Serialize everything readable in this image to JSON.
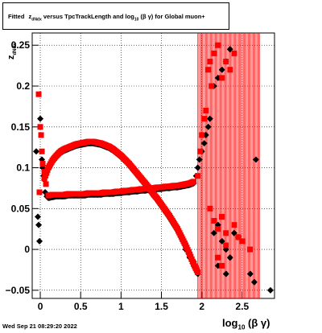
{
  "title": {
    "lead": "Fitted",
    "z": "z",
    "z_sub": "dNdx",
    "middle": "versus TpcTrackLength and log",
    "log_sub": "10",
    "tail": "(β γ) for Global muon+"
  },
  "date_stamp": "Wed Sep 21 08:29:20 2022",
  "x_axis_label": {
    "main": "log",
    "sub": "10",
    "tail": "(β γ)"
  },
  "y_axis_label": {
    "main": "z",
    "sub": "dNdx"
  },
  "colors": {
    "series_black": "#000000",
    "series_red": "#ff0000",
    "grid": "#000000"
  },
  "chart_data": {
    "type": "scatter",
    "xlim": [
      -0.1,
      2.9
    ],
    "ylim": [
      -0.06,
      0.265
    ],
    "x_ticks": [
      0,
      0.5,
      1,
      1.5,
      2,
      2.5
    ],
    "x_tick_labels": [
      "0",
      "0.5",
      "1",
      "1.5",
      "2",
      "2.5"
    ],
    "y_ticks": [
      -0.05,
      0,
      0.05,
      0.1,
      0.15,
      0.2,
      0.25
    ],
    "y_tick_labels": [
      "−0.05",
      "0",
      "0.05",
      "0.1",
      "0.15",
      "0.2",
      "0.25"
    ],
    "grid": true,
    "series": [
      {
        "marker": "diamond",
        "color": "#000000",
        "upper_band": [
          [
            0.05,
            0.085
          ],
          [
            0.1,
            0.098
          ],
          [
            0.15,
            0.107
          ],
          [
            0.2,
            0.113
          ],
          [
            0.25,
            0.118
          ],
          [
            0.3,
            0.121
          ],
          [
            0.35,
            0.123
          ],
          [
            0.4,
            0.125
          ],
          [
            0.45,
            0.127
          ],
          [
            0.5,
            0.128
          ],
          [
            0.55,
            0.129
          ],
          [
            0.6,
            0.13
          ],
          [
            0.65,
            0.13
          ],
          [
            0.7,
            0.129
          ],
          [
            0.75,
            0.128
          ],
          [
            0.8,
            0.126
          ],
          [
            0.85,
            0.124
          ],
          [
            0.9,
            0.121
          ],
          [
            0.95,
            0.117
          ],
          [
            1.0,
            0.113
          ],
          [
            1.05,
            0.108
          ],
          [
            1.1,
            0.103
          ],
          [
            1.15,
            0.097
          ],
          [
            1.2,
            0.091
          ],
          [
            1.25,
            0.085
          ],
          [
            1.3,
            0.079
          ],
          [
            1.35,
            0.073
          ],
          [
            1.4,
            0.066
          ],
          [
            1.45,
            0.06
          ],
          [
            1.5,
            0.053
          ],
          [
            1.55,
            0.046
          ],
          [
            1.6,
            0.039
          ],
          [
            1.65,
            0.031
          ],
          [
            1.7,
            0.023
          ],
          [
            1.75,
            0.013
          ],
          [
            1.8,
            0.003
          ],
          [
            1.85,
            -0.008
          ],
          [
            1.9,
            -0.02
          ],
          [
            1.95,
            -0.03
          ]
        ],
        "lower_band": [
          [
            0.1,
            0.063
          ],
          [
            0.15,
            0.064
          ],
          [
            0.2,
            0.065
          ],
          [
            0.25,
            0.065
          ],
          [
            0.3,
            0.065
          ],
          [
            0.35,
            0.066
          ],
          [
            0.4,
            0.066
          ],
          [
            0.45,
            0.066
          ],
          [
            0.5,
            0.066
          ],
          [
            0.55,
            0.066
          ],
          [
            0.6,
            0.067
          ],
          [
            0.65,
            0.067
          ],
          [
            0.7,
            0.067
          ],
          [
            0.75,
            0.067
          ],
          [
            0.8,
            0.068
          ],
          [
            0.85,
            0.068
          ],
          [
            0.9,
            0.068
          ],
          [
            0.95,
            0.069
          ],
          [
            1.0,
            0.069
          ],
          [
            1.05,
            0.07
          ],
          [
            1.1,
            0.07
          ],
          [
            1.15,
            0.071
          ],
          [
            1.2,
            0.071
          ],
          [
            1.25,
            0.072
          ],
          [
            1.3,
            0.072
          ],
          [
            1.35,
            0.073
          ],
          [
            1.4,
            0.073
          ],
          [
            1.45,
            0.074
          ],
          [
            1.5,
            0.074
          ],
          [
            1.55,
            0.075
          ],
          [
            1.6,
            0.075
          ],
          [
            1.65,
            0.076
          ],
          [
            1.7,
            0.076
          ],
          [
            1.75,
            0.077
          ],
          [
            1.8,
            0.078
          ],
          [
            1.85,
            0.079
          ],
          [
            1.9,
            0.081
          ]
        ],
        "scattered": [
          [
            -0.05,
            0.12
          ],
          [
            -0.03,
            0.04
          ],
          [
            -0.02,
            0.03
          ],
          [
            -0.01,
            0.01
          ],
          [
            0.0,
            0.16
          ],
          [
            0.02,
            0.11
          ],
          [
            0.03,
            0.1
          ],
          [
            0.04,
            0.09
          ],
          [
            0.06,
            0.07
          ],
          [
            0.08,
            0.065
          ],
          [
            1.8,
            0.0
          ],
          [
            1.85,
            -0.01
          ],
          [
            1.9,
            -0.015
          ],
          [
            1.93,
            0.09
          ],
          [
            1.95,
            0.1
          ],
          [
            1.97,
            0.11
          ],
          [
            2.0,
            0.12
          ],
          [
            2.03,
            0.13
          ],
          [
            2.05,
            0.14
          ],
          [
            2.08,
            0.15
          ],
          [
            2.1,
            0.16
          ],
          [
            2.15,
            0.2
          ],
          [
            2.2,
            0.21
          ],
          [
            2.25,
            0.22
          ],
          [
            2.3,
            0.23
          ],
          [
            2.35,
            0.245
          ],
          [
            2.15,
            0.02
          ],
          [
            2.2,
            0.03
          ],
          [
            2.25,
            0.01
          ],
          [
            2.3,
            0.0
          ],
          [
            2.35,
            -0.01
          ],
          [
            2.4,
            0.02
          ],
          [
            2.45,
            0.015
          ],
          [
            2.2,
            -0.02
          ],
          [
            2.3,
            -0.03
          ],
          [
            2.6,
            -0.03
          ],
          [
            2.65,
            -0.04
          ],
          [
            2.67,
            0.11
          ],
          [
            2.85,
            -0.05
          ]
        ]
      },
      {
        "marker": "square",
        "color": "#ff0000",
        "upper_band": [
          [
            0.05,
            0.087
          ],
          [
            0.1,
            0.1
          ],
          [
            0.15,
            0.109
          ],
          [
            0.2,
            0.115
          ],
          [
            0.25,
            0.12
          ],
          [
            0.3,
            0.123
          ],
          [
            0.35,
            0.125
          ],
          [
            0.4,
            0.127
          ],
          [
            0.45,
            0.129
          ],
          [
            0.5,
            0.13
          ],
          [
            0.55,
            0.131
          ],
          [
            0.6,
            0.132
          ],
          [
            0.65,
            0.132
          ],
          [
            0.7,
            0.131
          ],
          [
            0.75,
            0.13
          ],
          [
            0.8,
            0.128
          ],
          [
            0.85,
            0.126
          ],
          [
            0.9,
            0.123
          ],
          [
            0.95,
            0.119
          ],
          [
            1.0,
            0.115
          ],
          [
            1.05,
            0.11
          ],
          [
            1.1,
            0.105
          ],
          [
            1.15,
            0.099
          ],
          [
            1.2,
            0.093
          ],
          [
            1.25,
            0.087
          ],
          [
            1.3,
            0.081
          ],
          [
            1.35,
            0.075
          ],
          [
            1.4,
            0.068
          ],
          [
            1.45,
            0.062
          ],
          [
            1.5,
            0.055
          ],
          [
            1.55,
            0.048
          ],
          [
            1.6,
            0.041
          ],
          [
            1.65,
            0.033
          ],
          [
            1.7,
            0.025
          ],
          [
            1.75,
            0.015
          ],
          [
            1.8,
            0.005
          ],
          [
            1.85,
            -0.006
          ],
          [
            1.9,
            -0.018
          ],
          [
            1.95,
            -0.028
          ]
        ],
        "lower_band": [
          [
            0.1,
            0.066
          ],
          [
            0.15,
            0.067
          ],
          [
            0.2,
            0.067
          ],
          [
            0.25,
            0.067
          ],
          [
            0.3,
            0.067
          ],
          [
            0.35,
            0.068
          ],
          [
            0.4,
            0.068
          ],
          [
            0.45,
            0.068
          ],
          [
            0.5,
            0.068
          ],
          [
            0.55,
            0.068
          ],
          [
            0.6,
            0.069
          ],
          [
            0.65,
            0.069
          ],
          [
            0.7,
            0.069
          ],
          [
            0.75,
            0.069
          ],
          [
            0.8,
            0.07
          ],
          [
            0.85,
            0.07
          ],
          [
            0.9,
            0.07
          ],
          [
            0.95,
            0.071
          ],
          [
            1.0,
            0.071
          ],
          [
            1.05,
            0.072
          ],
          [
            1.1,
            0.072
          ],
          [
            1.15,
            0.073
          ],
          [
            1.2,
            0.073
          ],
          [
            1.25,
            0.074
          ],
          [
            1.3,
            0.074
          ],
          [
            1.35,
            0.075
          ],
          [
            1.4,
            0.075
          ],
          [
            1.45,
            0.076
          ],
          [
            1.5,
            0.076
          ],
          [
            1.55,
            0.077
          ],
          [
            1.6,
            0.077
          ],
          [
            1.65,
            0.078
          ],
          [
            1.7,
            0.078
          ],
          [
            1.75,
            0.079
          ],
          [
            1.8,
            0.08
          ],
          [
            1.85,
            0.081
          ],
          [
            1.9,
            0.083
          ]
        ],
        "scattered": [
          [
            -0.02,
            0.19
          ],
          [
            -0.01,
            0.07
          ],
          [
            0.0,
            0.15
          ],
          [
            0.01,
            0.14
          ],
          [
            0.02,
            0.12
          ],
          [
            0.03,
            0.105
          ],
          [
            0.05,
            0.095
          ],
          [
            0.07,
            0.08
          ],
          [
            1.95,
            0.09
          ],
          [
            1.98,
            0.12
          ],
          [
            2.0,
            0.14
          ],
          [
            2.03,
            0.16
          ],
          [
            2.05,
            0.17
          ],
          [
            2.08,
            0.22
          ],
          [
            2.1,
            0.23
          ],
          [
            2.12,
            0.2
          ],
          [
            2.15,
            0.24
          ],
          [
            2.2,
            0.25
          ],
          [
            2.25,
            0.21
          ],
          [
            2.3,
            0.23
          ],
          [
            2.35,
            0.22
          ],
          [
            2.4,
            0.24
          ],
          [
            2.1,
            0.05
          ],
          [
            2.15,
            0.035
          ],
          [
            2.2,
            0.025
          ],
          [
            2.25,
            0.04
          ],
          [
            2.3,
            0.02
          ],
          [
            2.4,
            0.03
          ],
          [
            2.45,
            0.015
          ],
          [
            2.5,
            0.01
          ],
          [
            2.6,
            0.0
          ],
          [
            2.2,
            -0.01
          ],
          [
            2.25,
            -0.02
          ],
          [
            2.3,
            0.005
          ]
        ]
      }
    ],
    "error_bar_region": {
      "x_start": 1.95,
      "x_end": 2.72
    }
  }
}
